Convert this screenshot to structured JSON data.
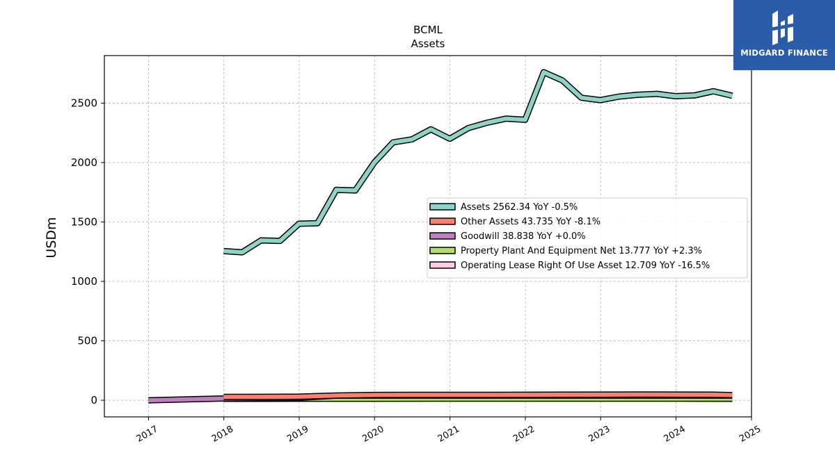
{
  "brand": {
    "name": "MIDGARD FINANCE",
    "logo_color": "#2a5caa"
  },
  "chart_data": {
    "type": "area",
    "title": "BCML",
    "subtitle": "Assets",
    "xlabel": "",
    "ylabel": "USDm",
    "xlim": [
      "2016-06-01",
      "2025-01-01"
    ],
    "ylim": [
      -140,
      2900
    ],
    "x_ticks": [
      "2017",
      "2018",
      "2019",
      "2020",
      "2021",
      "2022",
      "2023",
      "2024",
      "2025"
    ],
    "y_ticks": [
      0,
      500,
      1000,
      1500,
      2000,
      2500
    ],
    "grid": true,
    "legend_position": "center-right",
    "series": [
      {
        "name": "Assets",
        "legend": "Assets  2562.34 YoY -0.5%",
        "color": "#8dd3c7",
        "points": [
          [
            "2017-12-31",
            1255
          ],
          [
            "2018-03-31",
            1245
          ],
          [
            "2018-06-30",
            1345
          ],
          [
            "2018-09-30",
            1340
          ],
          [
            "2018-12-31",
            1485
          ],
          [
            "2019-03-31",
            1490
          ],
          [
            "2019-06-30",
            1770
          ],
          [
            "2019-09-30",
            1765
          ],
          [
            "2019-12-31",
            2000
          ],
          [
            "2020-03-31",
            2170
          ],
          [
            "2020-06-30",
            2195
          ],
          [
            "2020-09-30",
            2280
          ],
          [
            "2020-12-31",
            2200
          ],
          [
            "2021-03-31",
            2290
          ],
          [
            "2021-06-30",
            2335
          ],
          [
            "2021-09-30",
            2370
          ],
          [
            "2021-12-31",
            2360
          ],
          [
            "2022-03-31",
            2760
          ],
          [
            "2022-06-30",
            2690
          ],
          [
            "2022-09-30",
            2545
          ],
          [
            "2022-12-31",
            2525
          ],
          [
            "2023-03-31",
            2555
          ],
          [
            "2023-06-30",
            2570
          ],
          [
            "2023-09-30",
            2578
          ],
          [
            "2023-12-31",
            2558
          ],
          [
            "2024-03-31",
            2565
          ],
          [
            "2024-06-30",
            2600
          ],
          [
            "2024-09-30",
            2562.34
          ]
        ]
      },
      {
        "name": "Other Assets",
        "legend": "Other Assets  43.735 YoY -8.1%",
        "color": "#fb8072",
        "points": [
          [
            "2017-12-31",
            28
          ],
          [
            "2018-12-31",
            30
          ],
          [
            "2019-06-30",
            40
          ],
          [
            "2019-12-31",
            45
          ],
          [
            "2020-06-30",
            46
          ],
          [
            "2021-06-30",
            46
          ],
          [
            "2022-06-30",
            47
          ],
          [
            "2023-06-30",
            48
          ],
          [
            "2024-06-30",
            47
          ],
          [
            "2024-09-30",
            43.735
          ]
        ]
      },
      {
        "name": "Goodwill",
        "legend": "Goodwill  38.838 YoY +0.0%",
        "color": "#bc80bd",
        "points": [
          [
            "2016-12-31",
            0
          ],
          [
            "2017-12-31",
            15
          ],
          [
            "2018-12-31",
            20
          ],
          [
            "2019-06-30",
            38.838
          ],
          [
            "2020-06-30",
            38.838
          ],
          [
            "2021-06-30",
            38.838
          ],
          [
            "2022-06-30",
            38.838
          ],
          [
            "2023-06-30",
            38.838
          ],
          [
            "2024-09-30",
            38.838
          ]
        ]
      },
      {
        "name": "Property Plant And Equipment Net",
        "legend": "Property Plant And Equipment Net  13.777 YoY +2.3%",
        "color": "#b3de69",
        "points": [
          [
            "2017-12-31",
            12
          ],
          [
            "2018-12-31",
            12.5
          ],
          [
            "2019-12-31",
            12.8
          ],
          [
            "2020-12-31",
            13
          ],
          [
            "2021-12-31",
            13.2
          ],
          [
            "2022-12-31",
            13.4
          ],
          [
            "2023-12-31",
            13.5
          ],
          [
            "2024-09-30",
            13.777
          ]
        ]
      },
      {
        "name": "Operating Lease Right Of Use Asset",
        "legend": "Operating Lease Right Of Use Asset  12.709 YoY -16.5%",
        "color": "#fccde5",
        "points": [
          [
            "2018-12-31",
            15
          ],
          [
            "2019-12-31",
            16
          ],
          [
            "2020-12-31",
            15.5
          ],
          [
            "2021-12-31",
            15
          ],
          [
            "2022-12-31",
            15.2
          ],
          [
            "2023-12-31",
            15.2
          ],
          [
            "2024-09-30",
            12.709
          ]
        ]
      }
    ]
  }
}
